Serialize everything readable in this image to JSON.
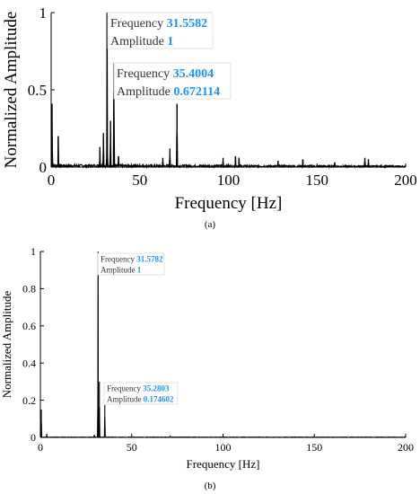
{
  "chart_data": [
    {
      "type": "line",
      "panel_label": "(a)",
      "xlabel": "Frequency [Hz]",
      "ylabel": "Normalized Amplitude",
      "xlim": [
        0,
        200
      ],
      "ylim": [
        0,
        1
      ],
      "xticks": [
        0,
        50,
        100,
        150,
        200
      ],
      "yticks": [
        0,
        0.5,
        1
      ],
      "ytick_labels": [
        "0",
        "0.5",
        "1"
      ],
      "grid": false,
      "series": [
        {
          "color": "#000000",
          "peaks": [
            {
              "x": 0.5,
              "y": 0.41
            },
            {
              "x": 4,
              "y": 0.2
            },
            {
              "x": 27.5,
              "y": 0.13
            },
            {
              "x": 29.5,
              "y": 0.22
            },
            {
              "x": 31.5582,
              "y": 1.0
            },
            {
              "x": 33.5,
              "y": 0.3
            },
            {
              "x": 35.4004,
              "y": 0.672114
            },
            {
              "x": 38,
              "y": 0.07
            },
            {
              "x": 63,
              "y": 0.06
            },
            {
              "x": 67,
              "y": 0.12
            },
            {
              "x": 71,
              "y": 0.41
            },
            {
              "x": 97,
              "y": 0.06
            },
            {
              "x": 104,
              "y": 0.07
            },
            {
              "x": 106,
              "y": 0.06
            },
            {
              "x": 128,
              "y": 0.04
            },
            {
              "x": 142,
              "y": 0.05
            },
            {
              "x": 160,
              "y": 0.03
            },
            {
              "x": 177,
              "y": 0.06
            },
            {
              "x": 179,
              "y": 0.05
            }
          ]
        }
      ],
      "annotations": [
        {
          "freq_label": "Frequency",
          "freq_value": "31.5582",
          "amp_label": "Amplitude",
          "amp_value": "1",
          "x": 31.5582,
          "y": 1.0
        },
        {
          "freq_label": "Frequency",
          "freq_value": "35.4004",
          "amp_label": "Amplitude",
          "amp_value": "0.672114",
          "x": 35.4004,
          "y": 0.672114
        }
      ]
    },
    {
      "type": "line",
      "panel_label": "(b)",
      "xlabel": "Frequency [Hz]",
      "ylabel": "Normalized Amplitude",
      "xlim": [
        0,
        200
      ],
      "ylim": [
        0,
        1
      ],
      "xticks": [
        0,
        50,
        100,
        150,
        200
      ],
      "yticks": [
        0,
        0.2,
        0.4,
        0.6,
        0.8,
        1
      ],
      "ytick_labels": [
        "0",
        "0.2",
        "0.4",
        "0.6",
        "0.8",
        "1"
      ],
      "grid": false,
      "series": [
        {
          "color": "#000000",
          "peaks": [
            {
              "x": 0.5,
              "y": 0.15
            },
            {
              "x": 3.5,
              "y": 0.02
            },
            {
              "x": 29.5,
              "y": 0.015
            },
            {
              "x": 31.5782,
              "y": 1.0
            },
            {
              "x": 32.3,
              "y": 0.3
            },
            {
              "x": 35.2803,
              "y": 0.174602
            },
            {
              "x": 71,
              "y": 0.01
            }
          ]
        }
      ],
      "annotations": [
        {
          "freq_label": "Frequency",
          "freq_value": "31.5782",
          "amp_label": "Amplitude",
          "amp_value": "1",
          "x": 31.5782,
          "y": 1.0
        },
        {
          "freq_label": "Frequency",
          "freq_value": "35.2803",
          "amp_label": "Amplitude",
          "amp_value": "0.174602",
          "x": 35.2803,
          "y": 0.174602
        }
      ]
    }
  ],
  "accent_color": "#1e90ff"
}
